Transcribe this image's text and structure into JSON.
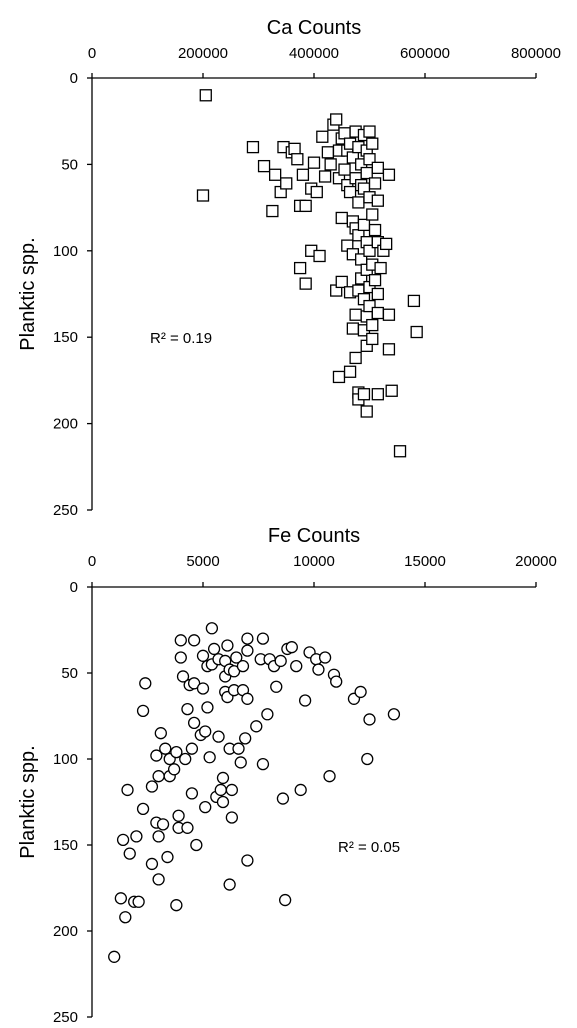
{
  "chart_data": [
    {
      "type": "scatter",
      "title": "Ca Counts",
      "ylabel": "Planktic spp.",
      "xlim": [
        0,
        800000
      ],
      "ylim": [
        0,
        250
      ],
      "x_ticks": [
        "0",
        "200000",
        "400000",
        "600000",
        "800000"
      ],
      "y_ticks": [
        "0",
        "50",
        "100",
        "150",
        "200",
        "250"
      ],
      "x_axis_position": "top",
      "y_inverted": true,
      "marker": "square",
      "annotation": "R² = 0.19",
      "points": [
        [
          205000,
          10
        ],
        [
          200000,
          68
        ],
        [
          290000,
          40
        ],
        [
          310000,
          51
        ],
        [
          325000,
          77
        ],
        [
          330000,
          56
        ],
        [
          340000,
          66
        ],
        [
          345000,
          40
        ],
        [
          350000,
          61
        ],
        [
          360000,
          43
        ],
        [
          365000,
          41
        ],
        [
          370000,
          47
        ],
        [
          375000,
          74
        ],
        [
          375000,
          110
        ],
        [
          380000,
          56
        ],
        [
          385000,
          74
        ],
        [
          385000,
          119
        ],
        [
          395000,
          64
        ],
        [
          395000,
          100
        ],
        [
          400000,
          49
        ],
        [
          405000,
          66
        ],
        [
          410000,
          103
        ],
        [
          415000,
          34
        ],
        [
          420000,
          57
        ],
        [
          425000,
          43
        ],
        [
          430000,
          50
        ],
        [
          435000,
          27
        ],
        [
          440000,
          24
        ],
        [
          440000,
          123
        ],
        [
          445000,
          42
        ],
        [
          445000,
          58
        ],
        [
          445000,
          173
        ],
        [
          450000,
          35
        ],
        [
          450000,
          81
        ],
        [
          450000,
          118
        ],
        [
          455000,
          32
        ],
        [
          455000,
          53
        ],
        [
          460000,
          42
        ],
        [
          460000,
          62
        ],
        [
          460000,
          97
        ],
        [
          465000,
          38
        ],
        [
          465000,
          66
        ],
        [
          465000,
          124
        ],
        [
          465000,
          170
        ],
        [
          470000,
          46
        ],
        [
          470000,
          83
        ],
        [
          470000,
          102
        ],
        [
          470000,
          145
        ],
        [
          475000,
          31
        ],
        [
          475000,
          58
        ],
        [
          475000,
          87
        ],
        [
          475000,
          137
        ],
        [
          475000,
          162
        ],
        [
          480000,
          40
        ],
        [
          480000,
          72
        ],
        [
          480000,
          91
        ],
        [
          480000,
          123
        ],
        [
          480000,
          182
        ],
        [
          480000,
          186
        ],
        [
          485000,
          50
        ],
        [
          485000,
          62
        ],
        [
          485000,
          105
        ],
        [
          485000,
          116
        ],
        [
          490000,
          33
        ],
        [
          490000,
          64
        ],
        [
          490000,
          85
        ],
        [
          490000,
          128
        ],
        [
          490000,
          146
        ],
        [
          490000,
          183
        ],
        [
          495000,
          42
        ],
        [
          495000,
          55
        ],
        [
          495000,
          95
        ],
        [
          495000,
          111
        ],
        [
          495000,
          138
        ],
        [
          495000,
          155
        ],
        [
          495000,
          193
        ],
        [
          500000,
          31
        ],
        [
          500000,
          47
        ],
        [
          500000,
          69
        ],
        [
          500000,
          100
        ],
        [
          500000,
          121
        ],
        [
          500000,
          132
        ],
        [
          505000,
          38
        ],
        [
          505000,
          79
        ],
        [
          505000,
          108
        ],
        [
          505000,
          143
        ],
        [
          505000,
          151
        ],
        [
          510000,
          61
        ],
        [
          510000,
          88
        ],
        [
          510000,
          117
        ],
        [
          515000,
          52
        ],
        [
          515000,
          71
        ],
        [
          515000,
          95
        ],
        [
          515000,
          125
        ],
        [
          515000,
          136
        ],
        [
          515000,
          183
        ],
        [
          520000,
          110
        ],
        [
          525000,
          100
        ],
        [
          530000,
          96
        ],
        [
          535000,
          56
        ],
        [
          535000,
          137
        ],
        [
          535000,
          157
        ],
        [
          540000,
          181
        ],
        [
          555000,
          216
        ],
        [
          580000,
          129
        ],
        [
          585000,
          147
        ]
      ]
    },
    {
      "type": "scatter",
      "title": "Fe Counts",
      "ylabel": "Planktic spp.",
      "xlim": [
        0,
        20000
      ],
      "ylim": [
        0,
        250
      ],
      "x_ticks": [
        "0",
        "5000",
        "10000",
        "15000",
        "20000"
      ],
      "y_ticks": [
        "0",
        "50",
        "100",
        "150",
        "200",
        "250"
      ],
      "x_axis_position": "top",
      "y_inverted": true,
      "marker": "circle",
      "annotation": "R² = 0.05",
      "points": [
        [
          1000,
          215
        ],
        [
          1300,
          181
        ],
        [
          1400,
          147
        ],
        [
          1500,
          192
        ],
        [
          1600,
          118
        ],
        [
          1700,
          155
        ],
        [
          1900,
          183
        ],
        [
          2000,
          145
        ],
        [
          2100,
          183
        ],
        [
          2300,
          129
        ],
        [
          2300,
          72
        ],
        [
          2400,
          56
        ],
        [
          2700,
          116
        ],
        [
          2700,
          161
        ],
        [
          2900,
          98
        ],
        [
          2900,
          137
        ],
        [
          3000,
          110
        ],
        [
          3000,
          145
        ],
        [
          3000,
          170
        ],
        [
          3100,
          85
        ],
        [
          3200,
          138
        ],
        [
          3300,
          94
        ],
        [
          3400,
          157
        ],
        [
          3500,
          100
        ],
        [
          3500,
          110
        ],
        [
          3700,
          106
        ],
        [
          3800,
          96
        ],
        [
          3800,
          185
        ],
        [
          3900,
          133
        ],
        [
          3900,
          140
        ],
        [
          4000,
          31
        ],
        [
          4000,
          41
        ],
        [
          4100,
          52
        ],
        [
          4200,
          100
        ],
        [
          4300,
          140
        ],
        [
          4300,
          71
        ],
        [
          4400,
          57
        ],
        [
          4500,
          94
        ],
        [
          4500,
          120
        ],
        [
          4600,
          31
        ],
        [
          4600,
          56
        ],
        [
          4600,
          79
        ],
        [
          4700,
          150
        ],
        [
          4900,
          86
        ],
        [
          5000,
          59
        ],
        [
          5000,
          40
        ],
        [
          5100,
          84
        ],
        [
          5100,
          128
        ],
        [
          5200,
          70
        ],
        [
          5200,
          46
        ],
        [
          5300,
          99
        ],
        [
          5400,
          24
        ],
        [
          5400,
          45
        ],
        [
          5500,
          36
        ],
        [
          5600,
          122
        ],
        [
          5700,
          42
        ],
        [
          5700,
          87
        ],
        [
          5800,
          118
        ],
        [
          5900,
          111
        ],
        [
          5900,
          125
        ],
        [
          6000,
          52
        ],
        [
          6000,
          61
        ],
        [
          6000,
          43
        ],
        [
          6100,
          64
        ],
        [
          6100,
          34
        ],
        [
          6200,
          48
        ],
        [
          6200,
          94
        ],
        [
          6200,
          173
        ],
        [
          6300,
          118
        ],
        [
          6300,
          134
        ],
        [
          6400,
          49
        ],
        [
          6400,
          60
        ],
        [
          6500,
          41
        ],
        [
          6600,
          94
        ],
        [
          6700,
          102
        ],
        [
          6800,
          60
        ],
        [
          6800,
          46
        ],
        [
          6900,
          88
        ],
        [
          7000,
          65
        ],
        [
          7000,
          159
        ],
        [
          7000,
          30
        ],
        [
          7000,
          37
        ],
        [
          7400,
          81
        ],
        [
          7600,
          42
        ],
        [
          7700,
          30
        ],
        [
          7700,
          103
        ],
        [
          7900,
          74
        ],
        [
          8000,
          42
        ],
        [
          8200,
          46
        ],
        [
          8300,
          58
        ],
        [
          8500,
          43
        ],
        [
          8600,
          123
        ],
        [
          8700,
          182
        ],
        [
          8800,
          36
        ],
        [
          9000,
          35
        ],
        [
          9200,
          46
        ],
        [
          9400,
          118
        ],
        [
          9600,
          66
        ],
        [
          9800,
          38
        ],
        [
          10100,
          42
        ],
        [
          10200,
          48
        ],
        [
          10500,
          41
        ],
        [
          10700,
          110
        ],
        [
          10900,
          51
        ],
        [
          11000,
          55
        ],
        [
          11800,
          65
        ],
        [
          12100,
          61
        ],
        [
          12400,
          100
        ],
        [
          12500,
          77
        ],
        [
          13600,
          74
        ]
      ]
    }
  ]
}
